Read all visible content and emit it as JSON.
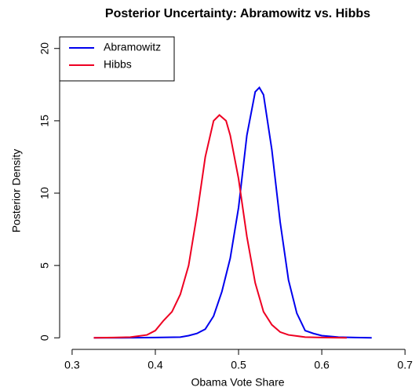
{
  "chart_data": {
    "type": "line",
    "title": "Posterior Uncertainty: Abramowitz vs. Hibbs",
    "x_label": "Obama Vote Share",
    "y_label": "Posterior Density",
    "xlim": [
      0.285,
      0.714
    ],
    "xticks": [
      0.3,
      0.4,
      0.5,
      0.6,
      0.7
    ],
    "ylim": [
      -0.8,
      20.8
    ],
    "yticks": [
      0,
      5,
      10,
      15,
      20
    ],
    "legend": "top-left",
    "series": [
      {
        "name": "Abramowitz",
        "color": "#0000ee",
        "x": [
          0.326,
          0.36,
          0.4,
          0.43,
          0.44,
          0.45,
          0.46,
          0.47,
          0.48,
          0.49,
          0.5,
          0.51,
          0.52,
          0.525,
          0.53,
          0.54,
          0.55,
          0.56,
          0.57,
          0.58,
          0.59,
          0.6,
          0.62,
          0.64,
          0.66
        ],
        "values": [
          0,
          0,
          0.02,
          0.05,
          0.15,
          0.3,
          0.6,
          1.5,
          3.2,
          5.5,
          9,
          14,
          17,
          17.3,
          16.8,
          13,
          8,
          4,
          1.7,
          0.5,
          0.3,
          0.15,
          0.05,
          0.02,
          0
        ]
      },
      {
        "name": "Hibbs",
        "color": "#ee0022",
        "x": [
          0.326,
          0.35,
          0.37,
          0.39,
          0.4,
          0.41,
          0.42,
          0.43,
          0.44,
          0.45,
          0.46,
          0.47,
          0.477,
          0.485,
          0.49,
          0.5,
          0.51,
          0.52,
          0.53,
          0.54,
          0.55,
          0.56,
          0.58,
          0.6,
          0.63
        ],
        "values": [
          0,
          0.02,
          0.05,
          0.2,
          0.5,
          1.2,
          1.8,
          3,
          5,
          8.5,
          12.5,
          15,
          15.4,
          15,
          14,
          11,
          7,
          3.8,
          1.8,
          0.9,
          0.4,
          0.2,
          0.05,
          0.02,
          0
        ]
      }
    ]
  }
}
